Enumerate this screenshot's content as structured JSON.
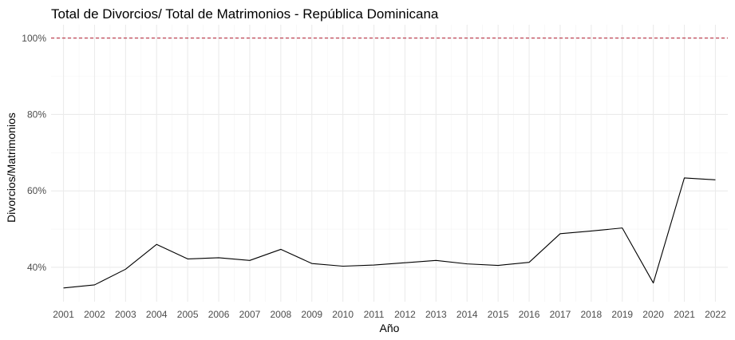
{
  "chart_data": {
    "type": "line",
    "title": "Total de Divorcios/ Total de Matrimonios - República Dominicana",
    "xlabel": "Año",
    "ylabel": "Divorcios/Matrimonios",
    "x": [
      2001,
      2002,
      2003,
      2004,
      2005,
      2006,
      2007,
      2008,
      2009,
      2010,
      2011,
      2012,
      2013,
      2014,
      2015,
      2016,
      2017,
      2018,
      2019,
      2020,
      2021,
      2022
    ],
    "x_tick_labels": [
      "2001",
      "2002",
      "2003",
      "2004",
      "2005",
      "2006",
      "2007",
      "2008",
      "2009",
      "2010",
      "2011",
      "2012",
      "2013",
      "2014",
      "2015",
      "2016",
      "2017",
      "2018",
      "2019",
      "2020",
      "2021",
      "2022"
    ],
    "series": [
      {
        "values": [
          0.346,
          0.354,
          0.395,
          0.46,
          0.422,
          0.425,
          0.418,
          0.447,
          0.41,
          0.403,
          0.406,
          0.412,
          0.418,
          0.409,
          0.405,
          0.413,
          0.488,
          0.495,
          0.503,
          0.359,
          0.634,
          0.629
        ],
        "color": "#000000"
      }
    ],
    "y_ticks": [
      0.4,
      0.6,
      0.8,
      1.0
    ],
    "y_tick_labels": [
      "40%",
      "60%",
      "80%",
      "100%"
    ],
    "ylim": [
      0.31,
      1.035
    ],
    "xlim": [
      2000.6,
      2022.4
    ],
    "reference_line": {
      "y": 1.0,
      "style": "dashed",
      "color": "#b2182b"
    },
    "grid": true,
    "legend": "none"
  }
}
